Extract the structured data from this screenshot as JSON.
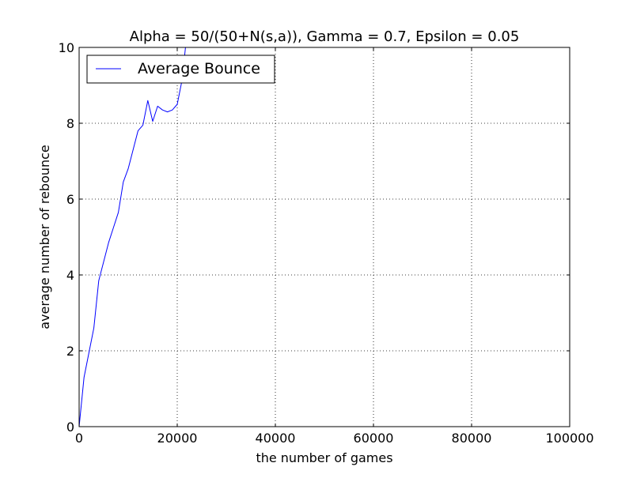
{
  "chart_data": {
    "type": "line",
    "title": "Alpha = 50/(50+N(s,a)), Gamma = 0.7, Epsilon = 0.05",
    "xlabel": "the number of games",
    "ylabel": "average number of rebounce",
    "xlim": [
      0,
      100000
    ],
    "ylim": [
      0,
      10
    ],
    "x_ticks": [
      0,
      20000,
      40000,
      60000,
      80000,
      100000
    ],
    "x_tick_labels": [
      "0",
      "20000",
      "40000",
      "60000",
      "80000",
      "100000"
    ],
    "y_ticks": [
      0,
      2,
      4,
      6,
      8,
      10
    ],
    "y_tick_labels": [
      "0",
      "2",
      "4",
      "6",
      "8",
      "10"
    ],
    "grid": true,
    "legend_position": "top-left",
    "series": [
      {
        "name": "Average Bounce",
        "color": "#0000ff",
        "x": [
          0,
          1000,
          2000,
          3000,
          4000,
          5000,
          6000,
          7000,
          8000,
          9000,
          10000,
          11000,
          12000,
          13000,
          14000,
          15000,
          16000,
          17000,
          18000,
          19000,
          20000,
          21000,
          22000
        ],
        "y": [
          0,
          1.3,
          1.95,
          2.6,
          3.85,
          4.35,
          4.85,
          5.25,
          5.65,
          6.45,
          6.8,
          7.3,
          7.8,
          7.95,
          8.6,
          8.05,
          8.45,
          8.35,
          8.3,
          8.35,
          8.5,
          9.15,
          10.4
        ]
      }
    ]
  }
}
